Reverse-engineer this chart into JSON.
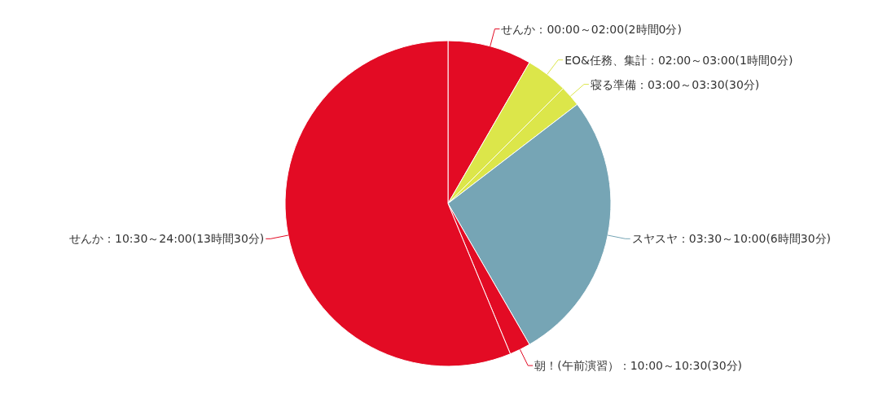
{
  "chart_data": {
    "type": "pie",
    "categories": [
      "せんか：00:00～02:00(2時間0分)",
      "EO&任務、集計：02:00～03:00(1時間0分)",
      "寝る準備：03:00～03:30(30分)",
      "スヤスヤ：03:30～10:00(6時間30分)",
      "朝！(午前演習）：10:00～10:30(30分)",
      "せんか：10:30～24:00(13時間30分)"
    ],
    "values": [
      2,
      1,
      0.5,
      6.5,
      0.5,
      13.5
    ],
    "colors": [
      "#e30b24",
      "#dce64a",
      "#dce64a",
      "#76a5b5",
      "#e30b24",
      "#e30b24"
    ],
    "legend": false
  }
}
